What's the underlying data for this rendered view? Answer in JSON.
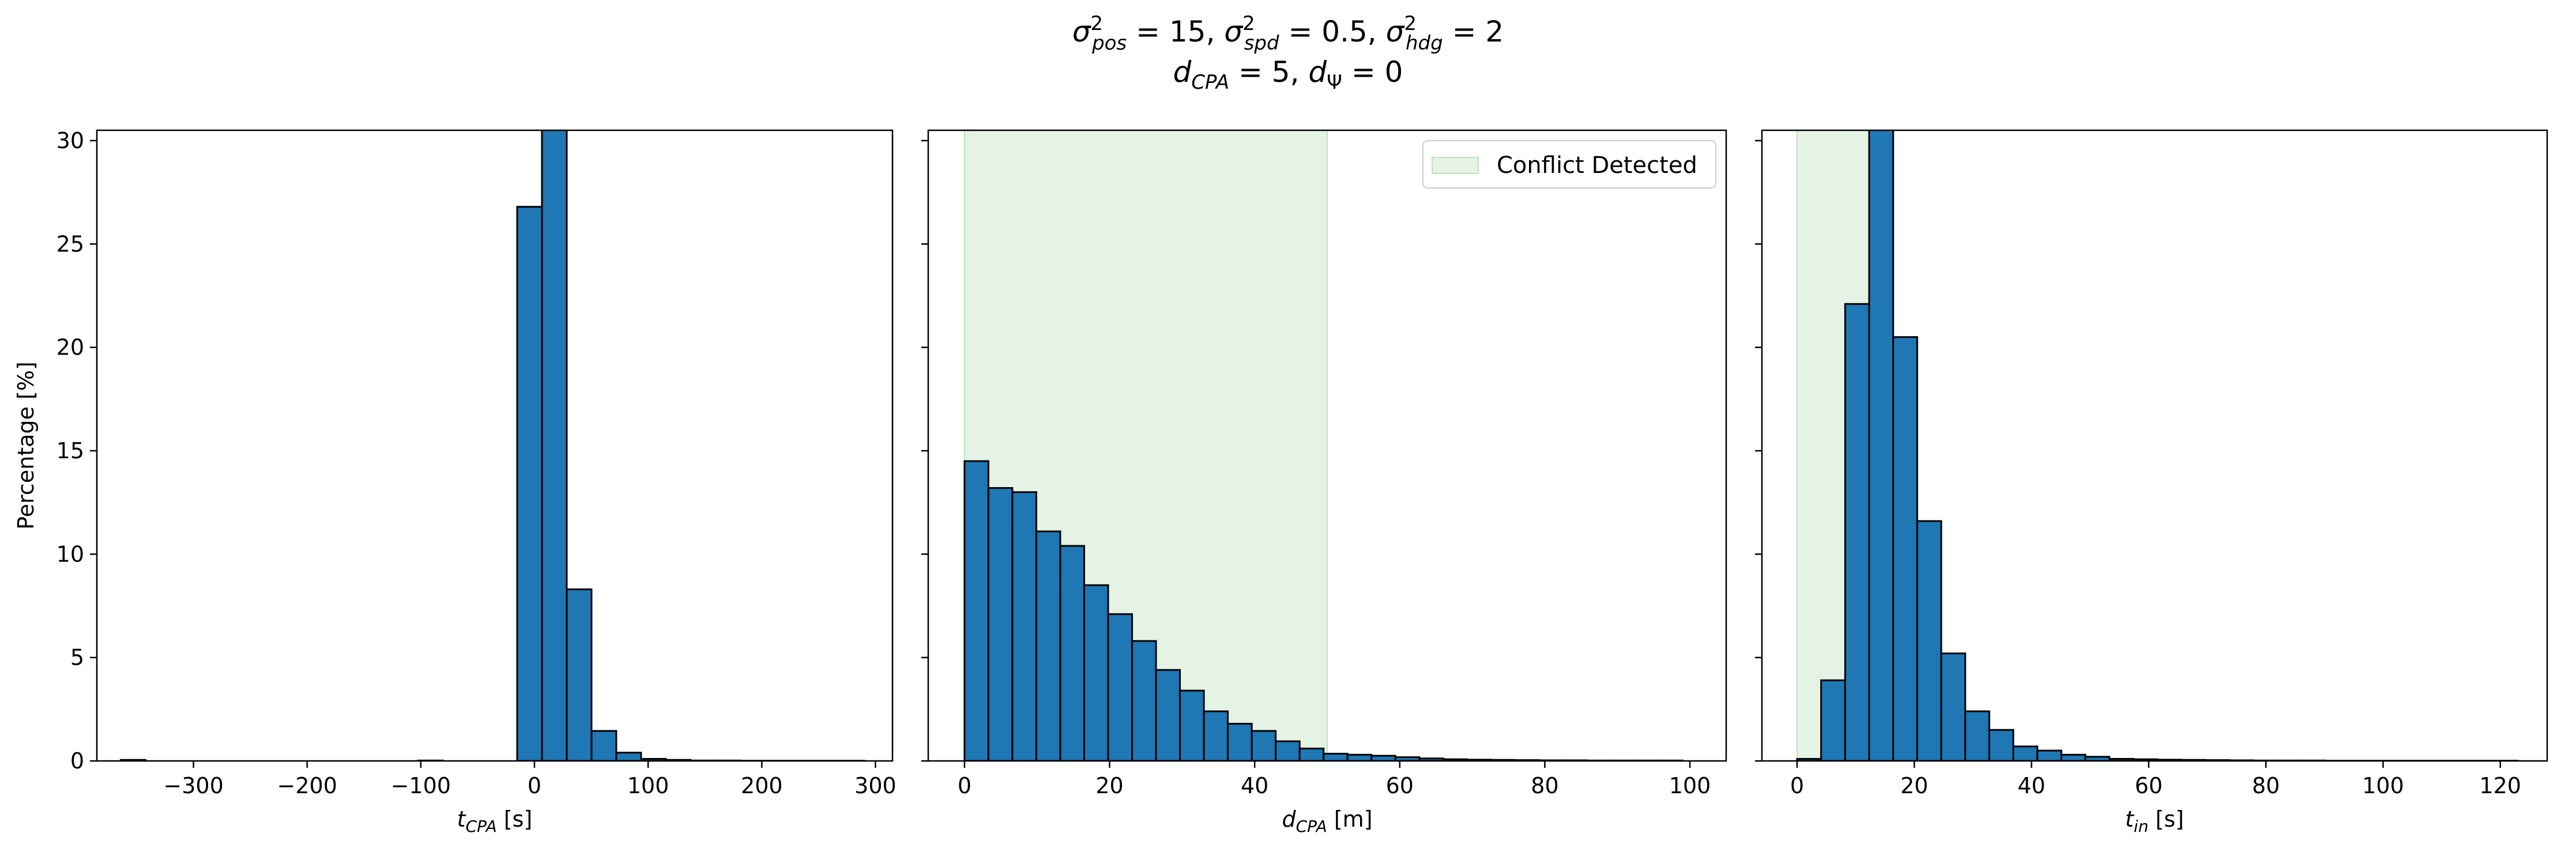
{
  "figure": {
    "title_line1": "σ²pos = 15, σ²spd = 0.5, σ²hdg = 2",
    "title_line2": "dCPA = 5, dΨ = 0"
  },
  "colors": {
    "bar_fill": "#1f77b4",
    "bar_edge": "#000000",
    "conflict_fill": "#2ca02c"
  },
  "chart_data": [
    {
      "type": "bar",
      "xlabel": "tCPA [s]",
      "ylabel": "Percentage [%]",
      "xlim": [
        -385,
        315
      ],
      "ylim": [
        0,
        30.5
      ],
      "xticks": [
        -300,
        -200,
        -100,
        0,
        100,
        200,
        300
      ],
      "xtick_labels": [
        "−300",
        "−200",
        "−100",
        "0",
        "100",
        "200",
        "300"
      ],
      "yticks": [
        0,
        5,
        10,
        15,
        20,
        25,
        30
      ],
      "ytick_labels": [
        "0",
        "5",
        "10",
        "15",
        "20",
        "25",
        "30"
      ],
      "bin_start": -364,
      "bin_width": 21.8,
      "values": [
        0.05,
        0,
        0,
        0,
        0,
        0,
        0,
        0,
        0,
        0,
        0,
        0,
        0.02,
        0,
        0,
        0,
        26.8,
        31.5,
        8.3,
        1.45,
        0.4,
        0.1,
        0.05,
        0.02,
        0.02,
        0.01,
        0.01,
        0.01,
        0.01,
        0.01
      ],
      "legend": null
    },
    {
      "type": "bar",
      "xlabel": "dCPA [m]",
      "ylabel": "",
      "xlim": [
        -5,
        105
      ],
      "ylim": [
        0,
        30.5
      ],
      "xticks": [
        0,
        20,
        40,
        60,
        80,
        100
      ],
      "xtick_labels": [
        "0",
        "20",
        "40",
        "60",
        "80",
        "100"
      ],
      "yticks": [
        0,
        5,
        10,
        15,
        20,
        25,
        30
      ],
      "bin_start": 0,
      "bin_width": 3.3,
      "values": [
        14.5,
        13.2,
        13.0,
        11.1,
        10.4,
        8.5,
        7.1,
        5.8,
        4.4,
        3.4,
        2.4,
        1.8,
        1.45,
        0.95,
        0.6,
        0.35,
        0.3,
        0.25,
        0.18,
        0.12,
        0.08,
        0.06,
        0.05,
        0.04,
        0.03,
        0.03,
        0.02,
        0.02,
        0.02,
        0.02
      ],
      "shaded_region": [
        0,
        50
      ],
      "legend": {
        "label": "Conflict Detected",
        "placement": "top-right"
      }
    },
    {
      "type": "bar",
      "xlabel": "tin [s]",
      "ylabel": "",
      "xlim": [
        -6,
        128
      ],
      "ylim": [
        0,
        30.5
      ],
      "xticks": [
        0,
        20,
        40,
        60,
        80,
        100,
        120
      ],
      "xtick_labels": [
        "0",
        "20",
        "40",
        "60",
        "80",
        "100",
        "120"
      ],
      "yticks": [
        0,
        5,
        10,
        15,
        20,
        25,
        30
      ],
      "bin_start": 0,
      "bin_width": 4.1,
      "values": [
        0.1,
        3.9,
        22.1,
        31.0,
        20.5,
        11.6,
        5.2,
        2.4,
        1.5,
        0.7,
        0.5,
        0.3,
        0.2,
        0.1,
        0.08,
        0.06,
        0.05,
        0.04,
        0.03,
        0.02,
        0.02,
        0.02,
        0.01,
        0.01,
        0.01,
        0.01,
        0.01,
        0.01,
        0.01,
        0.01
      ],
      "shaded_region": [
        0,
        12.3
      ],
      "legend": null
    }
  ]
}
